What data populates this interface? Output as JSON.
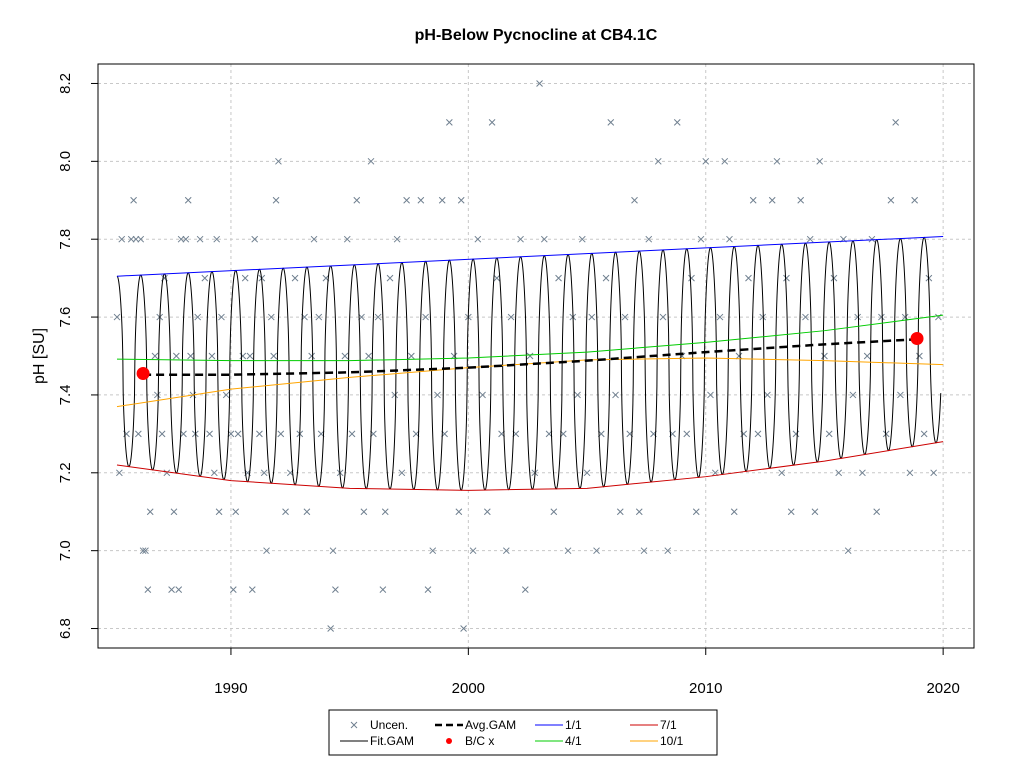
{
  "chart_data": {
    "type": "line",
    "title": "pH-Below Pycnocline at CB4.1C",
    "xlabel": "",
    "ylabel": "pH [SU]",
    "xlim": [
      1984.4,
      2021.3
    ],
    "ylim": [
      6.75,
      8.25
    ],
    "x_ticks": [
      1990,
      2000,
      2010,
      2020
    ],
    "y_ticks": [
      6.8,
      7.0,
      7.2,
      7.4,
      7.6,
      7.8,
      8.0,
      8.2
    ],
    "grid": true,
    "legend_position": "bottom",
    "legend": [
      {
        "label": "Uncen.",
        "kind": "cross",
        "color": "#708090"
      },
      {
        "label": "Fit.GAM",
        "kind": "line",
        "color": "#000000"
      },
      {
        "label": "Avg.GAM",
        "kind": "dashed",
        "color": "#000000"
      },
      {
        "label": "B/C x",
        "kind": "dot",
        "color": "#ff0000"
      },
      {
        "label": "1/1",
        "kind": "line",
        "color": "#0000ff"
      },
      {
        "label": "4/1",
        "kind": "line",
        "color": "#00cc00"
      },
      {
        "label": "7/1",
        "kind": "line",
        "color": "#cc0000"
      },
      {
        "label": "10/1",
        "kind": "line",
        "color": "#ffa500"
      }
    ],
    "series": [
      {
        "name": "1/1",
        "color": "#0000ff",
        "x": [
          1985.2,
          2020
        ],
        "y": [
          7.705,
          7.807
        ]
      },
      {
        "name": "4/1",
        "color": "#00cc00",
        "x": [
          1985.2,
          1990,
          1995,
          2000,
          2005,
          2010,
          2015,
          2020
        ],
        "y": [
          7.492,
          7.488,
          7.488,
          7.495,
          7.51,
          7.535,
          7.565,
          7.605
        ]
      },
      {
        "name": "7/1",
        "color": "#cc0000",
        "x": [
          1985.2,
          1990,
          1995,
          2000,
          2005,
          2010,
          2015,
          2020
        ],
        "y": [
          7.22,
          7.18,
          7.16,
          7.155,
          7.16,
          7.19,
          7.23,
          7.28
        ]
      },
      {
        "name": "10/1",
        "color": "#ffa500",
        "x": [
          1985.2,
          1990,
          1995,
          2000,
          2005,
          2010,
          2015,
          2020
        ],
        "y": [
          7.37,
          7.415,
          7.445,
          7.47,
          7.49,
          7.495,
          7.488,
          7.478
        ]
      },
      {
        "name": "Avg.GAM",
        "color": "#000000",
        "x": [
          1986.3,
          1990,
          1995,
          2000,
          2005,
          2010,
          2015,
          2018.9
        ],
        "y": [
          7.452,
          7.452,
          7.458,
          7.47,
          7.488,
          7.51,
          7.53,
          7.543
        ]
      },
      {
        "name": "B/C x",
        "color": "#ff0000",
        "x": [
          1986.3,
          2018.9
        ],
        "y": [
          7.455,
          7.545
        ]
      }
    ],
    "fit_gam": {
      "name": "Fit.GAM",
      "color": "#000000",
      "x_start": 1985.2,
      "x_end": 2019.9,
      "cycles_per_year": 1,
      "upper_bound": "1/1",
      "lower_bound": "7/1"
    },
    "observations": {
      "name": "Uncen.",
      "color": "#708090",
      "marker": "x",
      "points": [
        [
          1985.2,
          7.6
        ],
        [
          1985.3,
          7.2
        ],
        [
          1985.4,
          7.8
        ],
        [
          1985.6,
          7.3
        ],
        [
          1985.8,
          7.8
        ],
        [
          1985.9,
          7.9
        ],
        [
          1986.0,
          7.8
        ],
        [
          1986.1,
          7.3
        ],
        [
          1986.2,
          7.8
        ],
        [
          1986.3,
          7.0
        ],
        [
          1986.4,
          7.0
        ],
        [
          1986.5,
          6.9
        ],
        [
          1986.6,
          7.1
        ],
        [
          1986.8,
          7.5
        ],
        [
          1986.9,
          7.4
        ],
        [
          1987.0,
          7.6
        ],
        [
          1987.1,
          7.3
        ],
        [
          1987.2,
          7.7
        ],
        [
          1987.3,
          7.2
        ],
        [
          1987.5,
          6.9
        ],
        [
          1987.6,
          7.1
        ],
        [
          1987.7,
          7.5
        ],
        [
          1987.8,
          6.9
        ],
        [
          1987.9,
          7.8
        ],
        [
          1988.0,
          7.3
        ],
        [
          1988.1,
          7.8
        ],
        [
          1988.2,
          7.9
        ],
        [
          1988.3,
          7.5
        ],
        [
          1988.4,
          7.4
        ],
        [
          1988.5,
          7.3
        ],
        [
          1988.6,
          7.6
        ],
        [
          1988.7,
          7.8
        ],
        [
          1988.9,
          7.7
        ],
        [
          1989.1,
          7.3
        ],
        [
          1989.2,
          7.5
        ],
        [
          1989.3,
          7.2
        ],
        [
          1989.4,
          7.8
        ],
        [
          1989.5,
          7.1
        ],
        [
          1989.6,
          7.6
        ],
        [
          1989.8,
          7.4
        ],
        [
          1990.0,
          7.3
        ],
        [
          1990.1,
          6.9
        ],
        [
          1990.2,
          7.1
        ],
        [
          1990.3,
          7.3
        ],
        [
          1990.5,
          7.5
        ],
        [
          1990.6,
          7.7
        ],
        [
          1990.7,
          7.2
        ],
        [
          1990.8,
          7.5
        ],
        [
          1990.9,
          6.9
        ],
        [
          1991.0,
          7.8
        ],
        [
          1991.2,
          7.3
        ],
        [
          1991.3,
          7.7
        ],
        [
          1991.4,
          7.2
        ],
        [
          1991.5,
          7.0
        ],
        [
          1991.7,
          7.6
        ],
        [
          1991.8,
          7.5
        ],
        [
          1991.9,
          7.9
        ],
        [
          1992.0,
          8.0
        ],
        [
          1992.1,
          7.3
        ],
        [
          1992.3,
          7.1
        ],
        [
          1992.5,
          7.2
        ],
        [
          1992.7,
          7.7
        ],
        [
          1992.9,
          7.3
        ],
        [
          1993.1,
          7.6
        ],
        [
          1993.2,
          7.1
        ],
        [
          1993.4,
          7.5
        ],
        [
          1993.5,
          7.8
        ],
        [
          1993.7,
          7.6
        ],
        [
          1993.8,
          7.3
        ],
        [
          1994.0,
          7.7
        ],
        [
          1994.2,
          6.8
        ],
        [
          1994.3,
          7.0
        ],
        [
          1994.4,
          6.9
        ],
        [
          1994.6,
          7.2
        ],
        [
          1994.8,
          7.5
        ],
        [
          1994.9,
          7.8
        ],
        [
          1995.1,
          7.3
        ],
        [
          1995.3,
          7.9
        ],
        [
          1995.5,
          7.6
        ],
        [
          1995.6,
          7.1
        ],
        [
          1995.8,
          7.5
        ],
        [
          1995.9,
          8.0
        ],
        [
          1996.0,
          7.3
        ],
        [
          1996.2,
          7.6
        ],
        [
          1996.4,
          6.9
        ],
        [
          1996.5,
          7.1
        ],
        [
          1996.7,
          7.7
        ],
        [
          1996.9,
          7.4
        ],
        [
          1997.0,
          7.8
        ],
        [
          1997.2,
          7.2
        ],
        [
          1997.4,
          7.9
        ],
        [
          1997.6,
          7.5
        ],
        [
          1997.8,
          7.3
        ],
        [
          1998.0,
          7.9
        ],
        [
          1998.2,
          7.6
        ],
        [
          1998.3,
          6.9
        ],
        [
          1998.5,
          7.0
        ],
        [
          1998.7,
          7.4
        ],
        [
          1998.9,
          7.9
        ],
        [
          1999.0,
          7.3
        ],
        [
          1999.2,
          8.1
        ],
        [
          1999.4,
          7.5
        ],
        [
          1999.6,
          7.1
        ],
        [
          1999.7,
          7.9
        ],
        [
          1999.8,
          6.8
        ],
        [
          2000.0,
          7.6
        ],
        [
          2000.2,
          7.0
        ],
        [
          2000.4,
          7.8
        ],
        [
          2000.6,
          7.4
        ],
        [
          2000.8,
          7.1
        ],
        [
          2001.0,
          8.1
        ],
        [
          2001.2,
          7.7
        ],
        [
          2001.4,
          7.3
        ],
        [
          2001.6,
          7.0
        ],
        [
          2001.8,
          7.6
        ],
        [
          2002.0,
          7.3
        ],
        [
          2002.2,
          7.8
        ],
        [
          2002.4,
          6.9
        ],
        [
          2002.6,
          7.5
        ],
        [
          2002.8,
          7.2
        ],
        [
          2003.0,
          8.2
        ],
        [
          2003.2,
          7.8
        ],
        [
          2003.4,
          7.3
        ],
        [
          2003.6,
          7.1
        ],
        [
          2003.8,
          7.7
        ],
        [
          2004.0,
          7.3
        ],
        [
          2004.2,
          7.0
        ],
        [
          2004.4,
          7.6
        ],
        [
          2004.6,
          7.4
        ],
        [
          2004.8,
          7.8
        ],
        [
          2005.0,
          7.2
        ],
        [
          2005.2,
          7.6
        ],
        [
          2005.4,
          7.0
        ],
        [
          2005.6,
          7.3
        ],
        [
          2005.8,
          7.7
        ],
        [
          2006.0,
          8.1
        ],
        [
          2006.2,
          7.4
        ],
        [
          2006.4,
          7.1
        ],
        [
          2006.6,
          7.6
        ],
        [
          2006.8,
          7.3
        ],
        [
          2007.0,
          7.9
        ],
        [
          2007.2,
          7.1
        ],
        [
          2007.4,
          7.0
        ],
        [
          2007.6,
          7.8
        ],
        [
          2007.8,
          7.3
        ],
        [
          2008.0,
          8.0
        ],
        [
          2008.2,
          7.6
        ],
        [
          2008.4,
          7.0
        ],
        [
          2008.6,
          7.3
        ],
        [
          2008.8,
          8.1
        ],
        [
          2009.0,
          7.5
        ],
        [
          2009.2,
          7.3
        ],
        [
          2009.4,
          7.7
        ],
        [
          2009.6,
          7.1
        ],
        [
          2009.8,
          7.8
        ],
        [
          2010.0,
          8.0
        ],
        [
          2010.2,
          7.4
        ],
        [
          2010.4,
          7.2
        ],
        [
          2010.6,
          7.6
        ],
        [
          2010.8,
          8.0
        ],
        [
          2011.0,
          7.8
        ],
        [
          2011.2,
          7.1
        ],
        [
          2011.4,
          7.5
        ],
        [
          2011.6,
          7.3
        ],
        [
          2011.8,
          7.7
        ],
        [
          2012.0,
          7.9
        ],
        [
          2012.2,
          7.3
        ],
        [
          2012.4,
          7.6
        ],
        [
          2012.6,
          7.4
        ],
        [
          2012.8,
          7.9
        ],
        [
          2013.0,
          8.0
        ],
        [
          2013.2,
          7.2
        ],
        [
          2013.4,
          7.7
        ],
        [
          2013.6,
          7.1
        ],
        [
          2013.8,
          7.3
        ],
        [
          2014.0,
          7.9
        ],
        [
          2014.2,
          7.6
        ],
        [
          2014.4,
          7.8
        ],
        [
          2014.6,
          7.1
        ],
        [
          2014.8,
          8.0
        ],
        [
          2015.0,
          7.5
        ],
        [
          2015.2,
          7.3
        ],
        [
          2015.4,
          7.7
        ],
        [
          2015.6,
          7.2
        ],
        [
          2015.8,
          7.8
        ],
        [
          2016.0,
          7.0
        ],
        [
          2016.2,
          7.4
        ],
        [
          2016.4,
          7.6
        ],
        [
          2016.6,
          7.2
        ],
        [
          2016.8,
          7.5
        ],
        [
          2017.0,
          7.8
        ],
        [
          2017.2,
          7.1
        ],
        [
          2017.4,
          7.6
        ],
        [
          2017.6,
          7.3
        ],
        [
          2017.8,
          7.9
        ],
        [
          2018.0,
          8.1
        ],
        [
          2018.2,
          7.4
        ],
        [
          2018.4,
          7.6
        ],
        [
          2018.6,
          7.2
        ],
        [
          2018.8,
          7.9
        ],
        [
          2019.0,
          7.5
        ],
        [
          2019.2,
          7.3
        ],
        [
          2019.4,
          7.7
        ],
        [
          2019.6,
          7.2
        ],
        [
          2019.8,
          7.6
        ]
      ]
    }
  }
}
